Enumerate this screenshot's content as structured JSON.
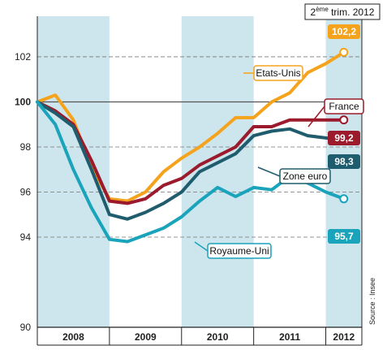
{
  "chart_data": {
    "type": "line",
    "period_label": {
      "prefix": "2",
      "sup": "ème",
      "suffix": " trim. 2012"
    },
    "source": "Source : Insee",
    "ylim": [
      90,
      103.8
    ],
    "yticks": [
      90,
      94,
      96,
      98,
      100,
      102
    ],
    "ytick_labels": [
      "90",
      "94",
      "96",
      "98",
      "100",
      "102"
    ],
    "baseline": 100,
    "x_start": 2008.0,
    "x_end": 2012.5,
    "years": [
      "2008",
      "2009",
      "2010",
      "2011",
      "2012"
    ],
    "shaded_years": [
      "2008",
      "2010",
      "2012"
    ],
    "grid": "dashed horizontal",
    "colors": {
      "shade": "#cde6ee",
      "grid": "#777777",
      "axis": "#222222"
    },
    "series": [
      {
        "name": "Etats-Unis",
        "color": "#f5a31c",
        "end_label": "102,2",
        "x": [
          2008.0,
          2008.25,
          2008.5,
          2008.75,
          2009.0,
          2009.25,
          2009.5,
          2009.75,
          2010.0,
          2010.25,
          2010.5,
          2010.75,
          2011.0,
          2011.25,
          2011.5,
          2011.75,
          2012.0,
          2012.25
        ],
        "values": [
          100.0,
          100.3,
          99.2,
          97.1,
          95.7,
          95.6,
          96.0,
          96.9,
          97.5,
          98.0,
          98.6,
          99.3,
          99.3,
          100.0,
          100.4,
          101.3,
          101.7,
          102.2
        ]
      },
      {
        "name": "France",
        "color": "#9b1a2c",
        "end_label": "99,2",
        "x": [
          2008.0,
          2008.25,
          2008.5,
          2008.75,
          2009.0,
          2009.25,
          2009.5,
          2009.75,
          2010.0,
          2010.25,
          2010.5,
          2010.75,
          2011.0,
          2011.25,
          2011.5,
          2011.75,
          2012.0,
          2012.25
        ],
        "values": [
          100.0,
          99.6,
          99.0,
          97.4,
          95.6,
          95.5,
          95.7,
          96.3,
          96.6,
          97.2,
          97.6,
          98.0,
          98.9,
          98.9,
          99.2,
          99.2,
          99.2,
          99.2
        ]
      },
      {
        "name": "Zone euro",
        "color": "#1f5d6e",
        "end_label": "98,3",
        "x": [
          2008.0,
          2008.25,
          2008.5,
          2008.75,
          2009.0,
          2009.25,
          2009.5,
          2009.75,
          2010.0,
          2010.25,
          2010.5,
          2010.75,
          2011.0,
          2011.25,
          2011.5,
          2011.75,
          2012.0,
          2012.25
        ],
        "values": [
          100.0,
          99.5,
          98.9,
          97.0,
          95.0,
          94.8,
          95.1,
          95.5,
          96.0,
          96.9,
          97.3,
          97.7,
          98.5,
          98.7,
          98.8,
          98.5,
          98.4,
          98.3
        ]
      },
      {
        "name": "Royaume-Uni",
        "color": "#19a4bb",
        "end_label": "95,7",
        "x": [
          2008.0,
          2008.25,
          2008.5,
          2008.75,
          2009.0,
          2009.25,
          2009.5,
          2009.75,
          2010.0,
          2010.25,
          2010.5,
          2010.75,
          2011.0,
          2011.25,
          2011.5,
          2011.75,
          2012.0,
          2012.25
        ],
        "values": [
          100.0,
          99.0,
          97.0,
          95.3,
          93.9,
          93.8,
          94.1,
          94.4,
          94.9,
          95.6,
          96.2,
          95.8,
          96.2,
          96.1,
          96.7,
          96.4,
          96.0,
          95.7
        ]
      }
    ]
  }
}
